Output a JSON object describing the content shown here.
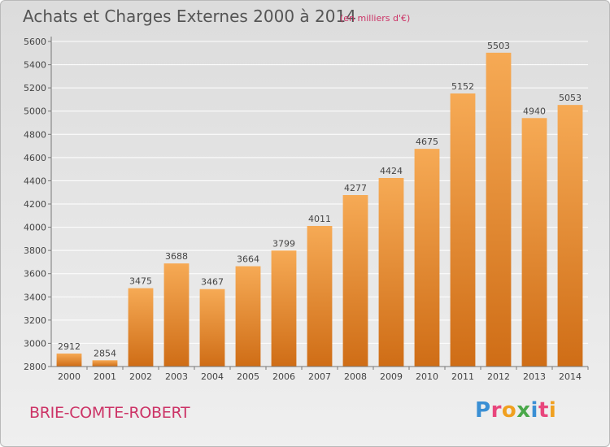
{
  "title": "Achats et Charges Externes 2000 à 2014",
  "subtitle": "(en milliers d'€)",
  "town": "BRIE-COMTE-ROBERT",
  "brand": {
    "letters": [
      "P",
      "r",
      "o",
      "x",
      "i",
      "t",
      "i"
    ],
    "colors": [
      "#3a8fd4",
      "#e8467c",
      "#f0a020",
      "#4aa84a",
      "#3a8fd4",
      "#e8467c",
      "#f0a020"
    ]
  },
  "colors": {
    "bar_light": "#f6aa55",
    "bar_dark": "#cf6d16",
    "grid": "#ffffff",
    "text": "#444444"
  },
  "chart_data": {
    "type": "bar",
    "categories": [
      "2000",
      "2001",
      "2002",
      "2003",
      "2004",
      "2005",
      "2006",
      "2007",
      "2008",
      "2009",
      "2010",
      "2011",
      "2012",
      "2013",
      "2014"
    ],
    "values": [
      2912,
      2854,
      3475,
      3688,
      3467,
      3664,
      3799,
      4011,
      4277,
      4424,
      4675,
      5152,
      5503,
      4940,
      5053
    ],
    "ylim": [
      2800,
      5600
    ],
    "yticks": [
      2800,
      3000,
      3200,
      3400,
      3600,
      3800,
      4000,
      4200,
      4400,
      4600,
      4800,
      5000,
      5200,
      5400,
      5600
    ],
    "grid": true,
    "data_labels": true
  }
}
